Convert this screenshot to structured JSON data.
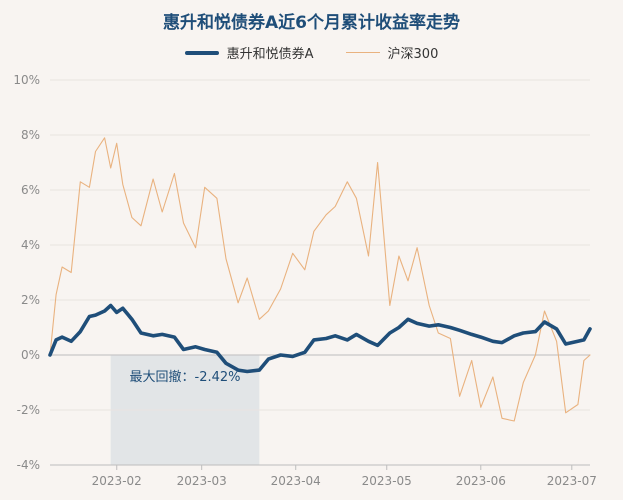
{
  "chart_data": {
    "type": "line",
    "title": "惠升和悦债券A近6个月累计收益率走势",
    "ylim": [
      -4,
      10
    ],
    "y_ticks": [
      "10%",
      "8%",
      "6%",
      "4%",
      "2%",
      "0%",
      "-2%",
      "-4%"
    ],
    "x_ticks": [
      "2023-02",
      "2023-03",
      "2023-04",
      "2023-05",
      "2023-06",
      "2023-07"
    ],
    "x_start": "2023-01-10",
    "x_end": "2023-07-07",
    "legend_position": "top",
    "grid": "horizontal",
    "colors": {
      "fund": "#1f4e79",
      "index": "#e9b27f",
      "drawdown": "#dfe3e6"
    },
    "max_drawdown": {
      "label": "最大回撤：-2.42%",
      "start": "2023-01-30",
      "end": "2023-03-20"
    },
    "series": [
      {
        "name": "惠升和悦债券A",
        "dates": [
          "2023-01-10",
          "2023-01-12",
          "2023-01-14",
          "2023-01-17",
          "2023-01-20",
          "2023-01-23",
          "2023-01-25",
          "2023-01-28",
          "2023-01-30",
          "2023-02-01",
          "2023-02-03",
          "2023-02-06",
          "2023-02-09",
          "2023-02-13",
          "2023-02-16",
          "2023-02-20",
          "2023-02-23",
          "2023-02-27",
          "2023-03-02",
          "2023-03-06",
          "2023-03-09",
          "2023-03-13",
          "2023-03-16",
          "2023-03-20",
          "2023-03-23",
          "2023-03-27",
          "2023-03-31",
          "2023-04-04",
          "2023-04-07",
          "2023-04-11",
          "2023-04-14",
          "2023-04-18",
          "2023-04-21",
          "2023-04-25",
          "2023-04-28",
          "2023-05-02",
          "2023-05-05",
          "2023-05-08",
          "2023-05-11",
          "2023-05-15",
          "2023-05-18",
          "2023-05-22",
          "2023-05-25",
          "2023-05-29",
          "2023-06-01",
          "2023-06-05",
          "2023-06-08",
          "2023-06-12",
          "2023-06-15",
          "2023-06-19",
          "2023-06-22",
          "2023-06-26",
          "2023-06-29",
          "2023-07-03",
          "2023-07-05",
          "2023-07-07"
        ],
        "values": [
          0.0,
          0.55,
          0.65,
          0.5,
          0.85,
          1.4,
          1.45,
          1.6,
          1.8,
          1.55,
          1.7,
          1.3,
          0.8,
          0.7,
          0.75,
          0.65,
          0.2,
          0.3,
          0.2,
          0.1,
          -0.3,
          -0.55,
          -0.6,
          -0.55,
          -0.15,
          0.0,
          -0.05,
          0.1,
          0.55,
          0.6,
          0.7,
          0.55,
          0.75,
          0.5,
          0.35,
          0.8,
          1.0,
          1.3,
          1.15,
          1.05,
          1.1,
          1.0,
          0.9,
          0.75,
          0.65,
          0.5,
          0.45,
          0.7,
          0.8,
          0.85,
          1.2,
          0.95,
          0.4,
          0.5,
          0.55,
          0.95
        ]
      },
      {
        "name": "沪深300",
        "dates": [
          "2023-01-10",
          "2023-01-12",
          "2023-01-14",
          "2023-01-17",
          "2023-01-20",
          "2023-01-23",
          "2023-01-25",
          "2023-01-28",
          "2023-01-30",
          "2023-02-01",
          "2023-02-03",
          "2023-02-06",
          "2023-02-09",
          "2023-02-13",
          "2023-02-16",
          "2023-02-20",
          "2023-02-23",
          "2023-02-27",
          "2023-03-02",
          "2023-03-06",
          "2023-03-09",
          "2023-03-13",
          "2023-03-16",
          "2023-03-20",
          "2023-03-23",
          "2023-03-27",
          "2023-03-31",
          "2023-04-04",
          "2023-04-07",
          "2023-04-11",
          "2023-04-14",
          "2023-04-18",
          "2023-04-21",
          "2023-04-25",
          "2023-04-28",
          "2023-05-02",
          "2023-05-05",
          "2023-05-08",
          "2023-05-11",
          "2023-05-15",
          "2023-05-18",
          "2023-05-22",
          "2023-05-25",
          "2023-05-29",
          "2023-06-01",
          "2023-06-05",
          "2023-06-08",
          "2023-06-12",
          "2023-06-15",
          "2023-06-19",
          "2023-06-22",
          "2023-06-26",
          "2023-06-29",
          "2023-07-03",
          "2023-07-05",
          "2023-07-07"
        ],
        "values": [
          0.0,
          2.2,
          3.2,
          3.0,
          6.3,
          6.1,
          7.4,
          7.9,
          6.8,
          7.7,
          6.2,
          5.0,
          4.7,
          6.4,
          5.2,
          6.6,
          4.8,
          3.9,
          6.1,
          5.7,
          3.5,
          1.9,
          2.8,
          1.3,
          1.6,
          2.4,
          3.7,
          3.1,
          4.5,
          5.1,
          5.4,
          6.3,
          5.7,
          3.6,
          7.0,
          1.8,
          3.6,
          2.7,
          3.9,
          1.8,
          0.8,
          0.6,
          -1.5,
          -0.2,
          -1.9,
          -0.8,
          -2.3,
          -2.4,
          -1.0,
          0.0,
          1.6,
          0.5,
          -2.1,
          -1.8,
          -0.2,
          0.0
        ]
      }
    ]
  }
}
